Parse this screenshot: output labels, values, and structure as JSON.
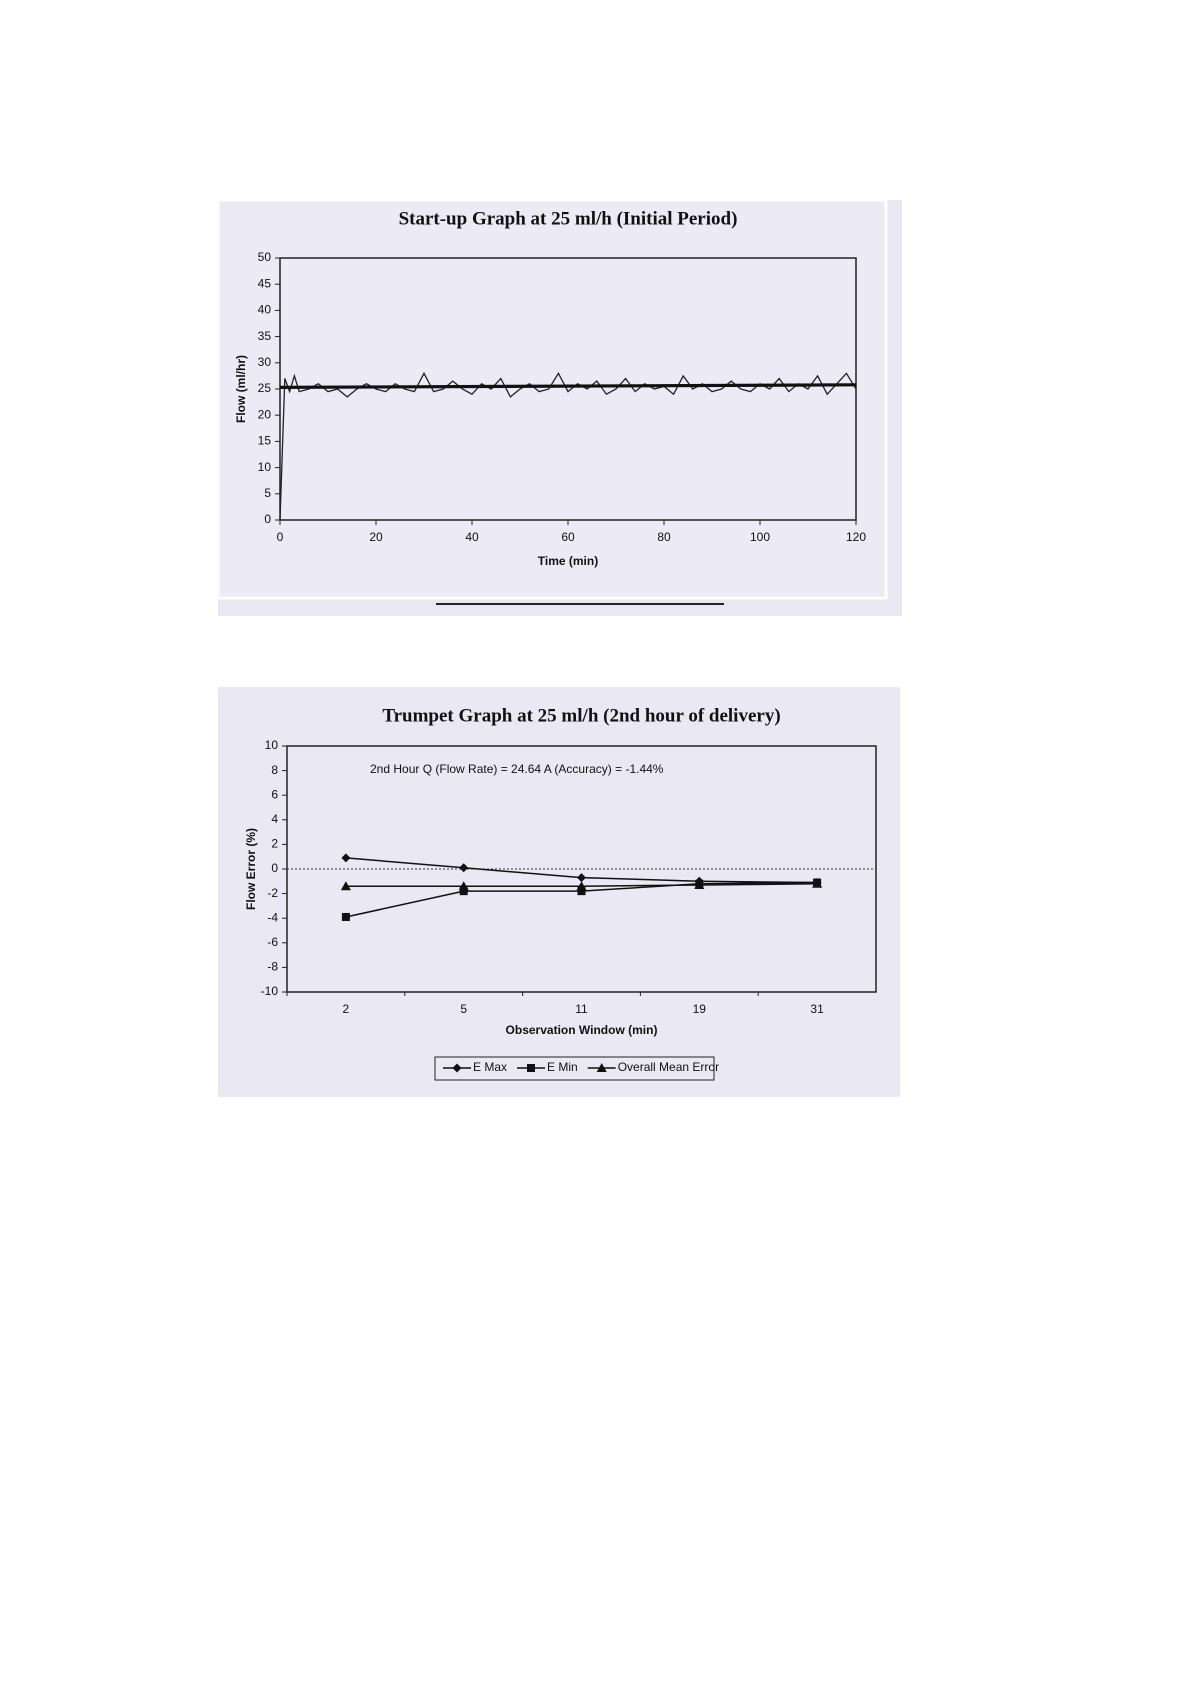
{
  "chart_data": [
    {
      "type": "line",
      "title": "Start-up Graph at 25 ml/h (Initial Period)",
      "x_label": "Time (min)",
      "y_label": "Flow (ml/hr)",
      "xlim": [
        0,
        120
      ],
      "xticks": [
        0,
        20,
        40,
        60,
        80,
        100,
        120
      ],
      "ylim": [
        0,
        50
      ],
      "yticks": [
        0,
        5,
        10,
        15,
        20,
        25,
        30,
        35,
        40,
        45,
        50
      ],
      "series": [
        {
          "color": "#222222",
          "width": 1.3,
          "x": [
            0,
            1,
            2,
            3,
            4,
            6,
            8,
            10,
            12,
            14,
            16,
            18,
            20,
            22,
            24,
            26,
            28,
            30,
            32,
            34,
            36,
            38,
            40,
            42,
            44,
            46,
            48,
            50,
            52,
            54,
            56,
            58,
            60,
            62,
            64,
            66,
            68,
            70,
            72,
            74,
            76,
            78,
            80,
            82,
            84,
            86,
            88,
            90,
            92,
            94,
            96,
            98,
            100,
            102,
            104,
            106,
            108,
            110,
            112,
            114,
            116,
            118,
            120
          ],
          "values": [
            0,
            27,
            24.5,
            27.5,
            24.5,
            25,
            26,
            24.5,
            25,
            23.5,
            25,
            26,
            25,
            24.5,
            26,
            25,
            24.5,
            28,
            24.5,
            25,
            26.5,
            25,
            24,
            26,
            25,
            27,
            23.5,
            25,
            26,
            24.5,
            25,
            28,
            24.5,
            26,
            25,
            26.5,
            24,
            25,
            27,
            24.5,
            26,
            25,
            25.5,
            24,
            27.5,
            25,
            26,
            24.5,
            25,
            26.5,
            25,
            24.5,
            26,
            25,
            27,
            24.5,
            26,
            25,
            27.5,
            24,
            26,
            28,
            25
          ]
        },
        {
          "color": "#111111",
          "width": 3.2,
          "x": [
            0,
            120
          ],
          "values": [
            25.3,
            25.8
          ]
        }
      ]
    },
    {
      "type": "line",
      "title": "Trumpet Graph at 25 ml/h (2nd hour of delivery)",
      "x_label": "Observation Window (min)",
      "y_label": "Flow Error (%)",
      "annotation": "2nd Hour Q (Flow  Rate) = 24.64    A (Accuracy) = -1.44%",
      "categories": [
        "2",
        "5",
        "11",
        "19",
        "31"
      ],
      "ylim": [
        -10,
        10
      ],
      "yticks": [
        -10,
        -8,
        -6,
        -4,
        -2,
        0,
        2,
        4,
        6,
        8,
        10
      ],
      "zero_line": true,
      "legend": "bottom",
      "series": [
        {
          "name": "E Max",
          "color": "#111111",
          "marker": "diamond",
          "values": [
            0.9,
            0.1,
            -0.7,
            -1.0,
            -1.1
          ]
        },
        {
          "name": "E Min",
          "color": "#111111",
          "marker": "square",
          "values": [
            -3.9,
            -1.8,
            -1.8,
            -1.2,
            -1.1
          ]
        },
        {
          "name": "Overall Mean Error",
          "color": "#111111",
          "marker": "triangle",
          "values": [
            -1.4,
            -1.4,
            -1.4,
            -1.3,
            -1.2
          ]
        }
      ]
    }
  ]
}
